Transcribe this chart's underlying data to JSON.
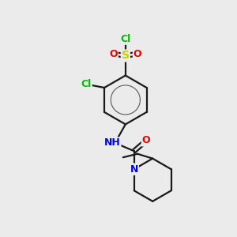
{
  "bg_color": "#ebebeb",
  "atom_colors": {
    "C": "#000000",
    "H": "#808080",
    "N": "#0000ee",
    "O": "#ee0000",
    "S": "#cccc00",
    "Cl": "#00bb00"
  },
  "bond_color": "#1a1a1a",
  "bond_width": 1.6,
  "figsize": [
    3.0,
    3.0
  ],
  "dpi": 100
}
